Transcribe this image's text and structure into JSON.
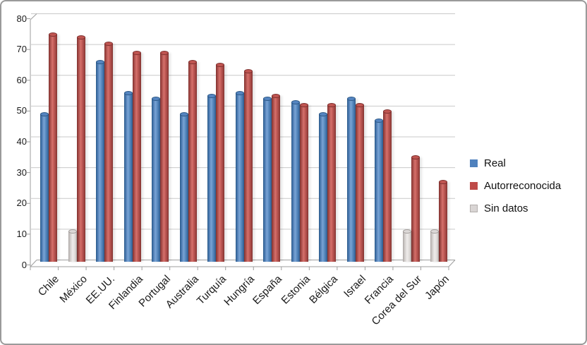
{
  "chart_data": {
    "type": "bar",
    "style": "3d-cylinder-column",
    "title": "",
    "xlabel": "",
    "ylabel": "",
    "categories": [
      "Chile",
      "México",
      "EE.UU.",
      "Finlandia",
      "Portugal",
      "Australia",
      "Turquía",
      "Hungría",
      "España",
      "Estonia",
      "Bélgica",
      "Israel",
      "Francia",
      "Corea del Sur",
      "Japón"
    ],
    "series": [
      {
        "name": "Real",
        "color": "#4f81bd",
        "values": [
          48,
          null,
          65,
          55,
          53,
          48,
          54,
          55,
          53,
          52,
          48,
          53,
          46,
          null,
          null
        ]
      },
      {
        "name": "Autorreconocida",
        "color": "#bf4b48",
        "values": [
          74,
          73,
          71,
          68,
          68,
          65,
          64,
          62,
          54,
          51,
          51,
          51,
          49,
          34,
          26
        ]
      },
      {
        "name": "Sin datos",
        "color": "#d9d5d4",
        "values": [
          null,
          10,
          null,
          null,
          null,
          null,
          null,
          null,
          null,
          null,
          null,
          null,
          null,
          10,
          10
        ]
      }
    ],
    "ylim": [
      0,
      80
    ],
    "ytick_step": 10,
    "grid": true,
    "legend_position": "right"
  },
  "colors": {
    "gridline": "#c9c9c9",
    "axis": "#9e9e9e",
    "frame_border": "#9a9a9a",
    "background": "#ffffff",
    "gray_swatch_border": "#b3aeac"
  }
}
